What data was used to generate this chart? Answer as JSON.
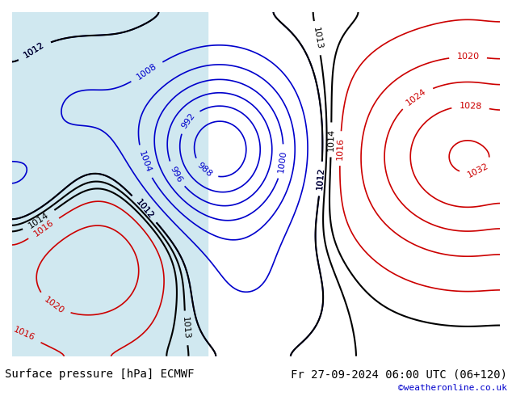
{
  "title_left": "Surface pressure [hPa] ECMWF",
  "title_right": "Fr 27-09-2024 06:00 UTC (06+120)",
  "watermark": "©weatheronline.co.uk",
  "bg_land_color": "#c8e6a0",
  "bg_sea_color": "#d0e8f0",
  "bg_gray_color": "#b0b0b0",
  "contour_color_blue": "#0000cc",
  "contour_color_red": "#cc0000",
  "contour_color_black": "#000000",
  "label_fontsize": 8,
  "title_fontsize": 10,
  "watermark_color": "#0000cc",
  "figsize": [
    6.34,
    4.9
  ],
  "dpi": 100
}
